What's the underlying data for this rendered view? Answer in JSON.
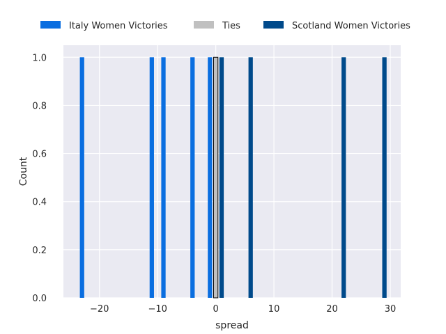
{
  "chart_data": {
    "type": "bar",
    "title": "",
    "xlabel": "spread",
    "ylabel": "Count",
    "xlim": [
      -26.2,
      31.8
    ],
    "ylim": [
      0,
      1.05
    ],
    "xticks": [
      -20,
      -10,
      0,
      10,
      20,
      30
    ],
    "yticks": [
      0.0,
      0.2,
      0.4,
      0.6,
      0.8,
      1.0
    ],
    "xtick_labels": [
      "−20",
      "−10",
      "0",
      "10",
      "20",
      "30"
    ],
    "ytick_labels": [
      "0.0",
      "0.2",
      "0.4",
      "0.6",
      "0.8",
      "1.0"
    ],
    "grid": true,
    "legend_position": "top",
    "bar_width": 0.75,
    "series": [
      {
        "name": "Italy Women Victories",
        "color": "#0a6ee0",
        "x": [
          -23,
          -11,
          -9,
          -4,
          -1
        ],
        "values": [
          1,
          1,
          1,
          1,
          1
        ]
      },
      {
        "name": "Ties",
        "color": "#c0c0c0",
        "x": [
          0
        ],
        "values": [
          1
        ]
      },
      {
        "name": "Scotland Women Victories",
        "color": "#004a8b",
        "x": [
          1,
          6,
          22,
          29
        ],
        "values": [
          1,
          1,
          1,
          1
        ]
      }
    ]
  }
}
